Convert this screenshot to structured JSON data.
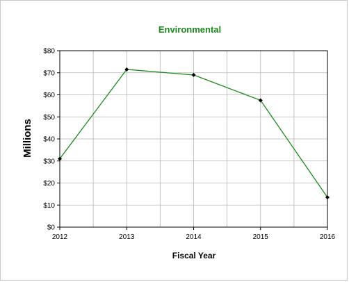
{
  "chart_data": {
    "type": "line",
    "title": "Environmental",
    "xlabel": "Fiscal Year",
    "ylabel": "Millions",
    "x": [
      "2012",
      "2013",
      "2014",
      "2015",
      "2016"
    ],
    "series": [
      {
        "values": [
          31,
          71.5,
          69,
          57.5,
          13.5
        ]
      }
    ],
    "ylim": [
      0,
      80
    ],
    "yticks": [
      0,
      10,
      20,
      30,
      40,
      50,
      60,
      70,
      80
    ],
    "ytick_labels": [
      "$0",
      "$10",
      "$20",
      "$30",
      "$40",
      "$50",
      "$60",
      "$70",
      "$80"
    ],
    "grid": true,
    "colors": {
      "line": "#1a8a1a",
      "marker": "#000000",
      "title": "#1a8a1a",
      "grid": "#b4b4b4"
    }
  }
}
